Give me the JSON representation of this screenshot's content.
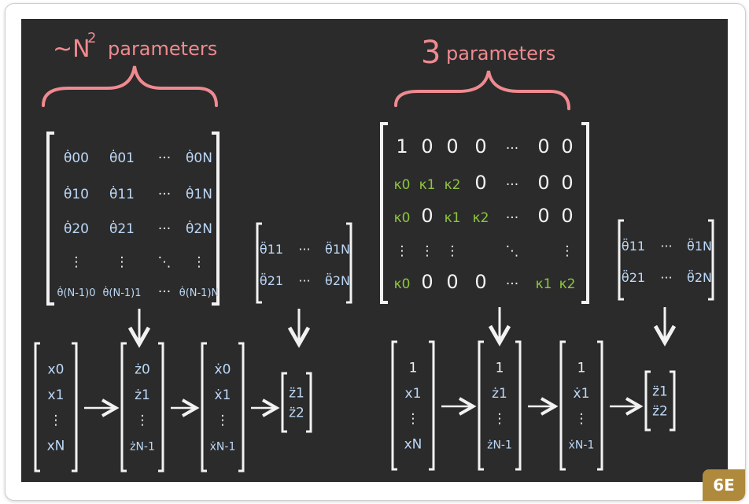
{
  "left_panel": {
    "heading": {
      "prefix": "~N",
      "exponent": "2",
      "word": "parameters"
    },
    "matrix": [
      [
        "θ̇00",
        "θ̇01",
        "···",
        "θ̇0N"
      ],
      [
        "θ̇10",
        "θ̇11",
        "···",
        "θ̇1N"
      ],
      [
        "θ̇20",
        "θ̇21",
        "···",
        "θ̇2N"
      ],
      [
        "⋮",
        "⋮",
        "⋱",
        "⋮"
      ],
      [
        "θ̇(N-1)0",
        "θ̇(N-1)1",
        "···",
        "θ̇(N-1)N"
      ]
    ],
    "second_matrix": [
      [
        "θ̈11",
        "···",
        "θ̈1N"
      ],
      [
        "θ̈21",
        "···",
        "θ̈2N"
      ]
    ],
    "vectors": [
      [
        "x0",
        "x1",
        "⋮",
        "xN"
      ],
      [
        "ż0",
        "ż1",
        "⋮",
        "żN-1"
      ],
      [
        "ẋ0",
        "ẋ1",
        "⋮",
        "ẋN-1"
      ],
      [
        "z̈1",
        "z̈2"
      ]
    ]
  },
  "right_panel": {
    "heading": {
      "number": "3",
      "word": "parameters"
    },
    "matrix": [
      [
        "1",
        "0",
        "0",
        "0",
        "···",
        "0",
        "0"
      ],
      [
        "κ0",
        "κ1",
        "κ2",
        "0",
        "···",
        "0",
        "0"
      ],
      [
        "κ0",
        "0",
        "κ1",
        "κ2",
        "···",
        "0",
        "0"
      ],
      [
        "⋮",
        "⋮",
        "⋮",
        "",
        "⋱",
        "",
        "⋮"
      ],
      [
        "κ0",
        "0",
        "0",
        "0",
        "···",
        "κ1",
        "κ2"
      ]
    ],
    "second_matrix": [
      [
        "θ̈11",
        "···",
        "θ̈1N"
      ],
      [
        "θ̈21",
        "···",
        "θ̈2N"
      ]
    ],
    "vectors": [
      [
        "1",
        "x1",
        "⋮",
        "xN"
      ],
      [
        "1",
        "ż1",
        "⋮",
        "żN-1"
      ],
      [
        "1",
        "ẋ1",
        "⋮",
        "ẋN-1"
      ],
      [
        "z̈1",
        "z̈2"
      ]
    ]
  },
  "badge": "6E",
  "colors": {
    "board": "#2b2b2b",
    "chalk_white": "#f2f2f2",
    "chalk_blue": "#bcd8f7",
    "chalk_green": "#8dc63f",
    "chalk_pink": "#f08a90",
    "badge": "#b08a3c"
  }
}
